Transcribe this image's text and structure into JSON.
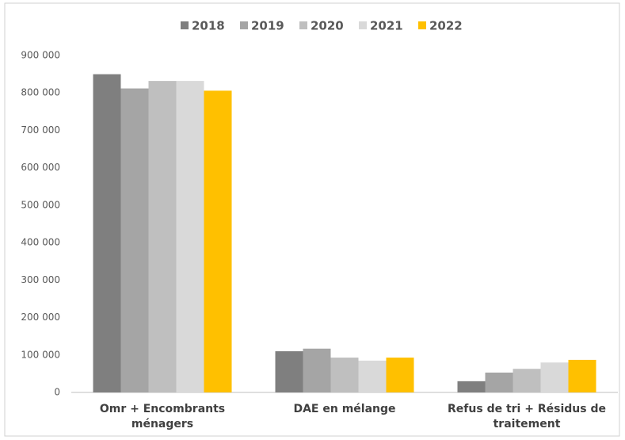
{
  "chart_data": {
    "type": "bar",
    "categories": [
      "Omr + Encombrants ménagers",
      "DAE en mélange",
      "Refus de tri + Résidus de traitement"
    ],
    "series": [
      {
        "name": "2018",
        "color": "#7f7f7f",
        "values": [
          850000,
          110000,
          30000
        ]
      },
      {
        "name": "2019",
        "color": "#a5a5a5",
        "values": [
          812000,
          117000,
          53000
        ]
      },
      {
        "name": "2020",
        "color": "#bfbfbf",
        "values": [
          832000,
          93000,
          63000
        ]
      },
      {
        "name": "2021",
        "color": "#d9d9d9",
        "values": [
          832000,
          85000,
          80000
        ]
      },
      {
        "name": "2022",
        "color": "#ffc000",
        "values": [
          806000,
          93000,
          87000
        ]
      }
    ],
    "ylim": [
      0,
      900000
    ],
    "yticks": [
      0,
      {
        "value": 100000,
        "label": "100 000"
      },
      {
        "value": 200000,
        "label": "200 000"
      },
      {
        "value": 300000,
        "label": "300 000"
      },
      {
        "value": 400000,
        "label": "400 000"
      },
      {
        "value": 500000,
        "label": "500 000"
      },
      {
        "value": 600000,
        "label": "600 000"
      },
      {
        "value": 700000,
        "label": "700 000"
      },
      {
        "value": 800000,
        "label": "800 000"
      },
      {
        "value": 900000,
        "label": "900 000"
      }
    ],
    "legend": "top",
    "grid": false
  }
}
